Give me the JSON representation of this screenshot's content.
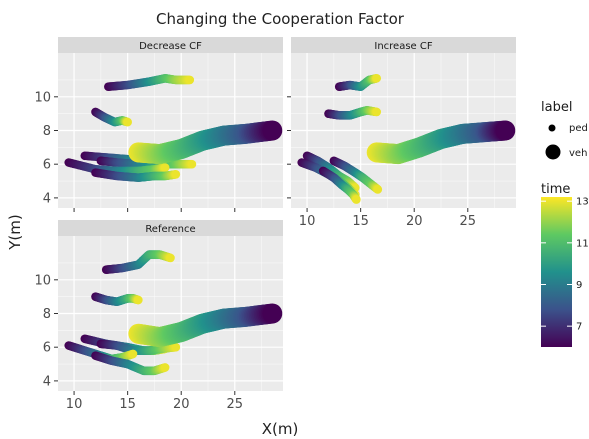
{
  "chart_data": {
    "type": "scatter",
    "title": "Changing the Cooperation Factor",
    "xlabel": "X(m)",
    "ylabel": "Y(m)",
    "panels": [
      {
        "name": "Decrease CF",
        "xlim": [
          8.5,
          29.5
        ],
        "ylim": [
          3.4,
          12.6
        ],
        "xticks": [
          10,
          15,
          20,
          25
        ],
        "yticks": [
          4,
          6,
          8,
          10
        ],
        "show_xtick_labels": false,
        "show_ytick_labels": true,
        "trajectories": [
          {
            "label": "ped",
            "points": [
              [
                13.2,
                10.6,
                6.0
              ],
              [
                15.0,
                10.7,
                7.5
              ],
              [
                17.0,
                10.9,
                9.5
              ],
              [
                18.5,
                11.1,
                11.0
              ],
              [
                19.5,
                11.0,
                12.0
              ],
              [
                20.8,
                11.0,
                13.0
              ]
            ]
          },
          {
            "label": "ped",
            "points": [
              [
                12.0,
                9.1,
                6.0
              ],
              [
                12.8,
                8.8,
                7.5
              ],
              [
                13.8,
                8.5,
                9.5
              ],
              [
                14.5,
                8.6,
                11.0
              ],
              [
                15.0,
                8.5,
                13.0
              ]
            ]
          },
          {
            "label": "ped",
            "points": [
              [
                11.0,
                6.5,
                6.0
              ],
              [
                13.0,
                6.4,
                7.5
              ],
              [
                15.0,
                6.3,
                9.0
              ],
              [
                17.0,
                6.1,
                10.5
              ],
              [
                18.5,
                6.1,
                11.5
              ],
              [
                20.0,
                6.0,
                13.0
              ]
            ]
          },
          {
            "label": "ped",
            "points": [
              [
                12.5,
                6.2,
                6.0
              ],
              [
                14.0,
                6.1,
                7.5
              ],
              [
                16.0,
                6.0,
                9.0
              ],
              [
                18.0,
                6.0,
                10.5
              ],
              [
                19.5,
                6.0,
                11.5
              ],
              [
                21.0,
                6.0,
                13.0
              ]
            ]
          },
          {
            "label": "ped",
            "points": [
              [
                9.5,
                6.1,
                6.0
              ],
              [
                12.0,
                5.7,
                7.5
              ],
              [
                14.0,
                5.6,
                9.0
              ],
              [
                16.0,
                5.6,
                10.5
              ],
              [
                17.5,
                5.7,
                11.5
              ],
              [
                18.5,
                5.8,
                13.0
              ]
            ]
          },
          {
            "label": "ped",
            "points": [
              [
                12.0,
                5.5,
                6.0
              ],
              [
                14.0,
                5.3,
                7.5
              ],
              [
                16.0,
                5.2,
                9.0
              ],
              [
                17.5,
                5.3,
                10.5
              ],
              [
                18.5,
                5.3,
                11.5
              ],
              [
                19.5,
                5.4,
                13.0
              ]
            ]
          },
          {
            "label": "veh",
            "points": [
              [
                16.0,
                6.7,
                13.0
              ],
              [
                18.0,
                6.6,
                12.0
              ],
              [
                20.0,
                6.9,
                11.0
              ],
              [
                22.0,
                7.4,
                10.0
              ],
              [
                24.0,
                7.7,
                9.0
              ],
              [
                26.0,
                7.8,
                8.0
              ],
              [
                28.5,
                8.0,
                6.0
              ]
            ]
          }
        ]
      },
      {
        "name": "Increase CF",
        "xlim": [
          8.5,
          29.5
        ],
        "ylim": [
          3.4,
          12.6
        ],
        "xticks": [
          10,
          15,
          20,
          25
        ],
        "yticks": [
          4,
          6,
          8,
          10
        ],
        "show_xtick_labels": true,
        "show_ytick_labels": false,
        "trajectories": [
          {
            "label": "ped",
            "points": [
              [
                13.0,
                10.6,
                6.0
              ],
              [
                14.0,
                10.7,
                7.5
              ],
              [
                15.0,
                10.6,
                9.5
              ],
              [
                15.8,
                11.0,
                11.0
              ],
              [
                16.5,
                11.1,
                13.0
              ]
            ]
          },
          {
            "label": "ped",
            "points": [
              [
                12.0,
                9.0,
                6.0
              ],
              [
                13.0,
                8.9,
                7.5
              ],
              [
                14.0,
                8.9,
                9.0
              ],
              [
                15.0,
                9.1,
                10.5
              ],
              [
                15.6,
                9.2,
                11.5
              ],
              [
                16.5,
                9.1,
                13.0
              ]
            ]
          },
          {
            "label": "ped",
            "points": [
              [
                10.0,
                6.5,
                6.0
              ],
              [
                11.0,
                6.2,
                7.5
              ],
              [
                12.0,
                5.8,
                9.0
              ],
              [
                13.0,
                5.3,
                10.5
              ],
              [
                13.8,
                5.0,
                11.5
              ],
              [
                14.5,
                4.6,
                13.0
              ]
            ]
          },
          {
            "label": "ped",
            "points": [
              [
                12.5,
                6.2,
                6.0
              ],
              [
                13.5,
                5.9,
                7.5
              ],
              [
                14.5,
                5.5,
                9.0
              ],
              [
                15.2,
                5.2,
                10.5
              ],
              [
                16.0,
                4.8,
                11.5
              ],
              [
                16.6,
                4.5,
                13.0
              ]
            ]
          },
          {
            "label": "ped",
            "points": [
              [
                9.5,
                6.1,
                6.0
              ],
              [
                10.8,
                5.8,
                7.5
              ],
              [
                12.0,
                5.4,
                9.0
              ],
              [
                13.0,
                5.0,
                10.5
              ],
              [
                13.8,
                4.6,
                11.5
              ],
              [
                14.5,
                4.2,
                13.0
              ]
            ]
          },
          {
            "label": "ped",
            "points": [
              [
                11.5,
                5.6,
                6.0
              ],
              [
                12.5,
                5.2,
                7.5
              ],
              [
                13.2,
                4.8,
                9.0
              ],
              [
                13.8,
                4.5,
                10.5
              ],
              [
                14.3,
                4.2,
                11.5
              ],
              [
                14.6,
                3.9,
                13.0
              ]
            ]
          },
          {
            "label": "veh",
            "points": [
              [
                16.5,
                6.7,
                13.0
              ],
              [
                18.5,
                6.6,
                12.0
              ],
              [
                20.5,
                7.0,
                11.0
              ],
              [
                22.5,
                7.5,
                10.0
              ],
              [
                24.5,
                7.8,
                9.0
              ],
              [
                26.5,
                7.9,
                8.0
              ],
              [
                28.5,
                8.0,
                6.0
              ]
            ]
          }
        ]
      },
      {
        "name": "Reference",
        "xlim": [
          8.5,
          29.5
        ],
        "ylim": [
          3.4,
          12.6
        ],
        "xticks": [
          10,
          15,
          20,
          25
        ],
        "yticks": [
          4,
          6,
          8,
          10
        ],
        "show_xtick_labels": true,
        "show_ytick_labels": true,
        "trajectories": [
          {
            "label": "ped",
            "points": [
              [
                13.0,
                10.6,
                6.0
              ],
              [
                14.5,
                10.7,
                7.5
              ],
              [
                16.0,
                10.9,
                9.0
              ],
              [
                17.0,
                11.5,
                10.5
              ],
              [
                18.0,
                11.5,
                11.5
              ],
              [
                19.0,
                11.3,
                13.0
              ]
            ]
          },
          {
            "label": "ped",
            "points": [
              [
                12.0,
                9.0,
                6.0
              ],
              [
                13.0,
                8.8,
                7.5
              ],
              [
                14.0,
                8.7,
                9.0
              ],
              [
                15.0,
                8.9,
                10.5
              ],
              [
                15.5,
                8.9,
                11.5
              ],
              [
                16.0,
                8.8,
                13.0
              ]
            ]
          },
          {
            "label": "ped",
            "points": [
              [
                11.0,
                6.5,
                6.0
              ],
              [
                13.0,
                6.2,
                7.5
              ],
              [
                15.0,
                6.0,
                9.0
              ],
              [
                16.5,
                5.8,
                10.5
              ],
              [
                17.5,
                5.8,
                11.5
              ],
              [
                18.5,
                5.9,
                13.0
              ]
            ]
          },
          {
            "label": "ped",
            "points": [
              [
                12.5,
                6.2,
                6.0
              ],
              [
                14.0,
                6.1,
                7.5
              ],
              [
                15.5,
                5.8,
                9.0
              ],
              [
                17.0,
                5.8,
                10.5
              ],
              [
                18.0,
                5.9,
                11.5
              ],
              [
                19.5,
                6.0,
                13.0
              ]
            ]
          },
          {
            "label": "ped",
            "points": [
              [
                9.5,
                6.1,
                6.0
              ],
              [
                11.0,
                5.8,
                7.5
              ],
              [
                12.5,
                5.5,
                9.0
              ],
              [
                13.5,
                5.3,
                10.5
              ],
              [
                14.5,
                5.4,
                11.5
              ],
              [
                15.5,
                5.6,
                13.0
              ]
            ]
          },
          {
            "label": "ped",
            "points": [
              [
                12.0,
                5.5,
                6.0
              ],
              [
                13.5,
                5.2,
                7.5
              ],
              [
                15.0,
                5.0,
                9.0
              ],
              [
                16.5,
                4.6,
                10.5
              ],
              [
                17.5,
                4.6,
                11.5
              ],
              [
                18.5,
                4.8,
                13.0
              ]
            ]
          },
          {
            "label": "veh",
            "points": [
              [
                16.0,
                6.8,
                13.0
              ],
              [
                18.0,
                6.6,
                12.0
              ],
              [
                20.0,
                6.9,
                11.0
              ],
              [
                22.0,
                7.4,
                10.0
              ],
              [
                24.0,
                7.7,
                9.0
              ],
              [
                26.0,
                7.8,
                8.0
              ],
              [
                28.5,
                8.0,
                6.0
              ]
            ]
          }
        ]
      }
    ],
    "legend": {
      "size_title": "label",
      "size_entries": [
        "ped",
        "veh"
      ],
      "color_title": "time",
      "color_ticks": [
        7,
        9,
        11,
        13
      ],
      "color_range": [
        6,
        13.2
      ],
      "position": "right"
    },
    "colormap": "viridis",
    "grid": true,
    "panel_background": "#ebebeb",
    "strip_background": "#d9d9d9",
    "grid_color": "#ffffff"
  }
}
